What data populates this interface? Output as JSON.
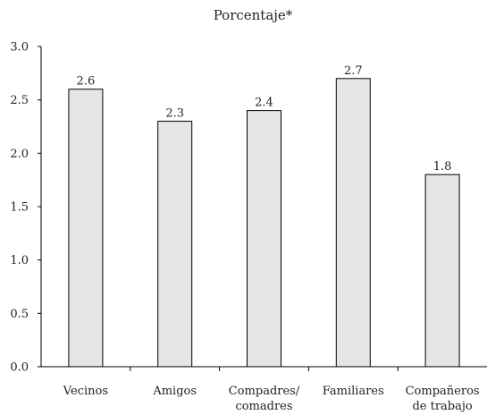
{
  "chart_data": {
    "type": "bar",
    "title": "Porcentaje*",
    "xlabel": "",
    "ylabel": "",
    "ylim": [
      0,
      3.0
    ],
    "yticks": [
      "0.0",
      "0.5",
      "1.0",
      "1.5",
      "2.0",
      "2.5",
      "3.0"
    ],
    "categories": [
      [
        "Vecinos"
      ],
      [
        "Amigos"
      ],
      [
        "Compadres/",
        "comadres"
      ],
      [
        "Familiares"
      ],
      [
        "Compañeros",
        "de trabajo"
      ]
    ],
    "values": [
      2.6,
      2.3,
      2.4,
      2.7,
      1.8
    ],
    "value_labels": [
      "2.6",
      "2.3",
      "2.4",
      "2.7",
      "1.8"
    ],
    "grid": false,
    "legend": "none",
    "bar_color": "#e5e5e5",
    "bar_stroke": "#000000"
  }
}
